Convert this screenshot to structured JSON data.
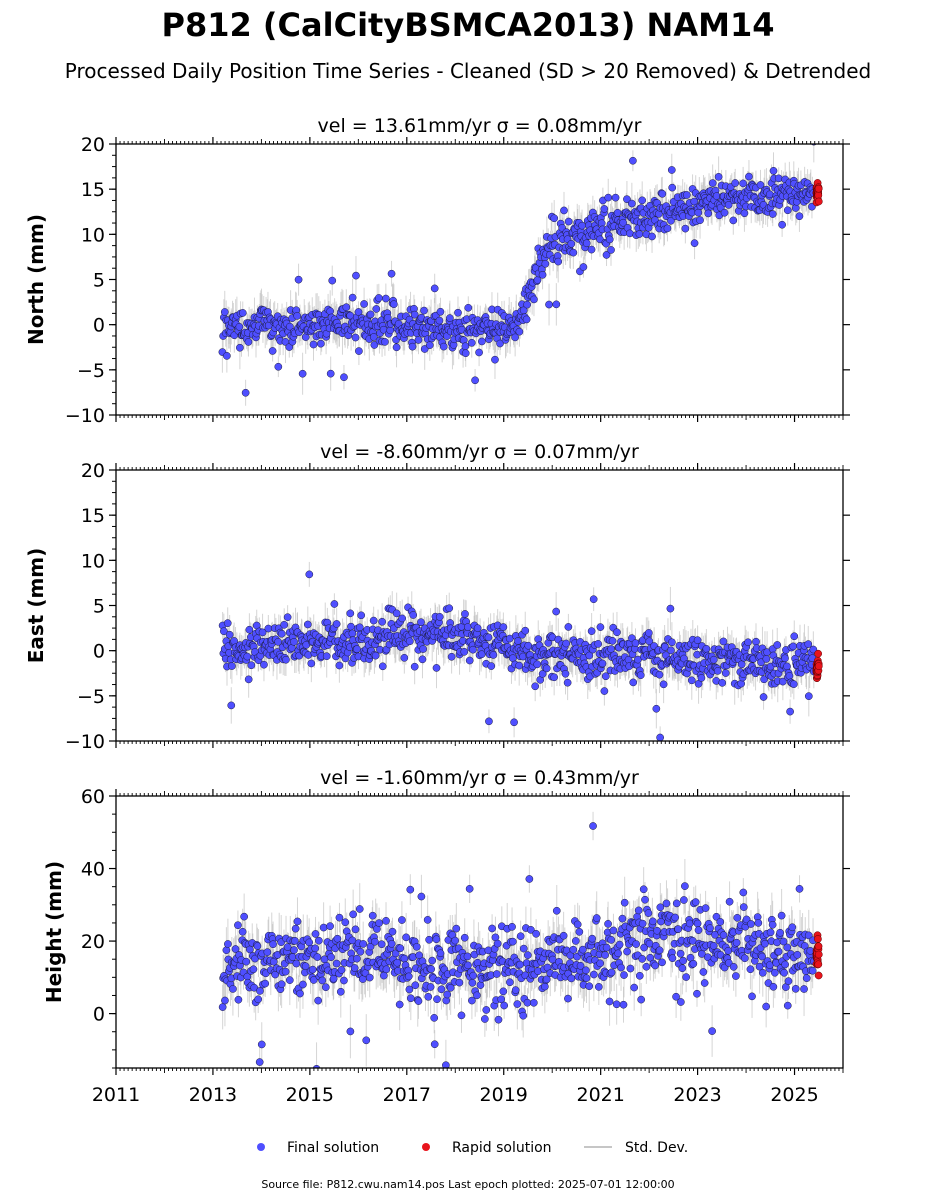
{
  "header": {
    "title": "P812 (CalCityBSMCA2013) NAM14",
    "subtitle": "Processed Daily Position Time Series - Cleaned (SD > 20 Removed) & Detrended"
  },
  "legend": {
    "final_label": "Final solution",
    "rapid_label": "Rapid solution",
    "std_label": "Std. Dev."
  },
  "footer": {
    "source": "Source file: P812.cwu.nam14.pos  Last epoch plotted: 2025-07-01 12:00:00"
  },
  "colors": {
    "final": "#4f4fff",
    "final_edge": "#1a1a3a",
    "rapid": "#e8141c",
    "std_dev": "#b3b3b3"
  },
  "chart_data": [
    {
      "type": "scatter",
      "title": "vel = 13.61mm/yr   σ = 0.08mm/yr",
      "ylabel": "North (mm)",
      "xlim": [
        2011.0,
        2026.0
      ],
      "ylim": [
        -10,
        20
      ],
      "yticks": [
        -10,
        -5,
        0,
        5,
        10,
        15,
        20
      ],
      "ytick_labels": [
        "−10",
        "−5",
        "0",
        "5",
        "10",
        "15",
        "20"
      ],
      "series": [
        {
          "name": "Final solution",
          "x": [
            2013.2,
            2013.5,
            2014.0,
            2014.5,
            2015.0,
            2015.5,
            2016.0,
            2016.5,
            2017.0,
            2017.5,
            2018.0,
            2018.5,
            2019.0,
            2019.3,
            2019.5,
            2019.7,
            2019.9,
            2020.2,
            2020.5,
            2021.0,
            2021.5,
            2022.0,
            2022.5,
            2023.0,
            2023.5,
            2024.0,
            2024.5,
            2025.0,
            2025.4
          ],
          "y": [
            0,
            -0.3,
            0.2,
            -0.4,
            0,
            0.3,
            -0.2,
            0.1,
            0,
            -0.5,
            -0.8,
            -0.5,
            -0.2,
            0,
            3,
            6,
            8,
            9.5,
            10,
            11,
            11.5,
            12,
            12.5,
            13.5,
            14,
            14.5,
            14.5,
            14.5,
            14.5
          ],
          "scatter_sd": 1.1,
          "std_dev": 1.6
        },
        {
          "name": "Rapid solution",
          "x": [
            2025.45,
            2025.5
          ],
          "y": [
            14.5,
            14.5
          ],
          "scatter_sd": 0.6
        }
      ]
    },
    {
      "type": "scatter",
      "title": "vel = -8.60mm/yr   σ = 0.07mm/yr",
      "ylabel": "East (mm)",
      "xlim": [
        2011.0,
        2026.0
      ],
      "ylim": [
        -10,
        20
      ],
      "yticks": [
        -10,
        -5,
        0,
        5,
        10,
        15,
        20
      ],
      "ytick_labels": [
        "−10",
        "−5",
        "0",
        "5",
        "10",
        "15",
        "20"
      ],
      "series": [
        {
          "name": "Final solution",
          "x": [
            2013.2,
            2014.0,
            2015.0,
            2016.0,
            2016.5,
            2017.0,
            2017.5,
            2018.0,
            2018.5,
            2019.0,
            2019.5,
            2020.0,
            2020.5,
            2021.0,
            2021.5,
            2022.0,
            2022.5,
            2023.0,
            2023.5,
            2024.0,
            2024.5,
            2025.0,
            2025.4
          ],
          "y": [
            0.3,
            0.7,
            0.8,
            1.2,
            1.5,
            1.8,
            1.5,
            1.2,
            1.0,
            0.8,
            -0.5,
            -0.5,
            -0.8,
            -0.5,
            -1.0,
            -0.5,
            -0.8,
            -1.0,
            -1.2,
            -1.0,
            -1.5,
            -1.5,
            -1.5
          ],
          "scatter_sd": 1.3,
          "std_dev": 1.6
        },
        {
          "name": "Rapid solution",
          "x": [
            2025.45,
            2025.5
          ],
          "y": [
            -2.0,
            -2.0
          ],
          "scatter_sd": 0.6
        }
      ]
    },
    {
      "type": "scatter",
      "title": "vel = -1.60mm/yr   σ = 0.43mm/yr",
      "ylabel": "Height (mm)",
      "xlim": [
        2011.0,
        2026.0
      ],
      "ylim": [
        -15,
        60
      ],
      "yticks": [
        0,
        20,
        40,
        60
      ],
      "ytick_labels": [
        "0",
        "20",
        "40",
        "60"
      ],
      "xticks": [
        2011,
        2013,
        2015,
        2017,
        2019,
        2021,
        2023,
        2025
      ],
      "xtick_labels": [
        "2011",
        "2013",
        "2015",
        "2017",
        "2019",
        "2021",
        "2023",
        "2025"
      ],
      "series": [
        {
          "name": "Final solution",
          "x": [
            2013.2,
            2014.0,
            2015.0,
            2016.0,
            2017.0,
            2018.0,
            2019.0,
            2020.0,
            2021.0,
            2022.0,
            2022.5,
            2023.0,
            2023.5,
            2024.0,
            2024.5,
            2025.0,
            2025.4
          ],
          "y": [
            10,
            14,
            15,
            17,
            14,
            13,
            12,
            14,
            17,
            20,
            22,
            22,
            17,
            18,
            16,
            16,
            16
          ],
          "scatter_sd": 5.5,
          "std_dev": 5.0
        },
        {
          "name": "Rapid solution",
          "x": [
            2025.45,
            2025.5
          ],
          "y": [
            16,
            16
          ],
          "scatter_sd": 2.2
        }
      ]
    }
  ]
}
